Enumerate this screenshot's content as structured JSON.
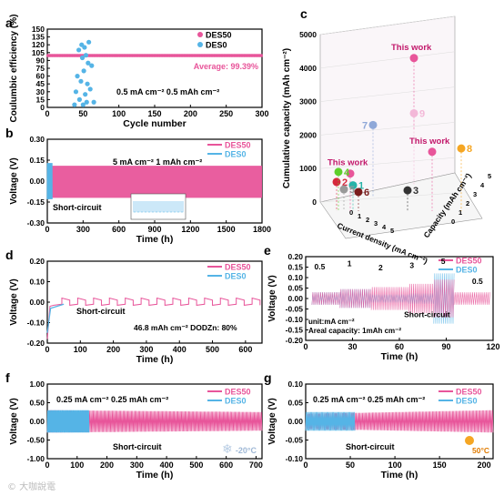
{
  "colors": {
    "pink": "#e8559a",
    "pink_light": "#f6a9cf",
    "blue": "#55b4e6",
    "blue_light": "#9ad3f2",
    "teal": "#27b3a8",
    "red": "#d6283d",
    "green": "#5ecf2b",
    "orange": "#f5a623"
  },
  "watermark": "© 大咖說電",
  "chart_data": [
    {
      "id": "a",
      "type": "scatter",
      "panel_label": "a",
      "xlabel": "Cycle number",
      "ylabel": "Coulumbic efficiency (%)",
      "xlim": [
        0,
        300
      ],
      "ylim": [
        0,
        150
      ],
      "xticks": [
        0,
        50,
        100,
        150,
        200,
        250,
        300
      ],
      "yticks": [
        0,
        15,
        30,
        45,
        60,
        75,
        90,
        105,
        120,
        135,
        150
      ],
      "legend": [
        "DES50",
        "DES0"
      ],
      "legend_position": "top-right",
      "annotations": [
        "Average: 99.39%",
        "0.5 mA cm⁻² 0.5 mAh cm⁻²"
      ],
      "series": [
        {
          "name": "DES50",
          "color": "#e8559a",
          "x_range": [
            1,
            300
          ],
          "value": 99.39
        },
        {
          "name": "DES0",
          "color": "#55b4e6",
          "points": [
            [
              38,
              5
            ],
            [
              40,
              30
            ],
            [
              42,
              60
            ],
            [
              44,
              110
            ],
            [
              45,
              15
            ],
            [
              47,
              50
            ],
            [
              48,
              120
            ],
            [
              49,
              95
            ],
            [
              50,
              5
            ],
            [
              51,
              70
            ],
            [
              52,
              115
            ],
            [
              53,
              25
            ],
            [
              54,
              100
            ],
            [
              55,
              10
            ],
            [
              56,
              45
            ],
            [
              57,
              85
            ],
            [
              58,
              125
            ],
            [
              60,
              35
            ],
            [
              62,
              80
            ],
            [
              65,
              10
            ]
          ]
        }
      ]
    },
    {
      "id": "b",
      "type": "line",
      "panel_label": "b",
      "xlabel": "Time (h)",
      "ylabel": "Voltage (V)",
      "xlim": [
        0,
        1800
      ],
      "ylim": [
        -0.3,
        0.3
      ],
      "xticks": [
        0,
        300,
        600,
        900,
        1200,
        1500,
        1800
      ],
      "yticks": [
        -0.3,
        -0.15,
        0.0,
        0.15,
        0.3
      ],
      "legend": [
        "DES50",
        "DES0"
      ],
      "legend_position": "top-right",
      "annotations": [
        "5 mA cm⁻² 1 mAh cm⁻²",
        "Short-circuit"
      ],
      "series": [
        {
          "name": "DES50",
          "color": "#e8559a",
          "amplitude_start": 0.11,
          "amplitude_end": 0.14,
          "x_range": [
            0,
            1800
          ]
        },
        {
          "name": "DES0",
          "color": "#55b4e6",
          "amplitude_start": 0.13,
          "x_range": [
            0,
            40
          ]
        }
      ]
    },
    {
      "id": "c",
      "type": "scatter",
      "panel_label": "c",
      "xlabel": "Current density (mA cm⁻²)",
      "ylabel": "Cumulative capacity (mAh cm⁻²)",
      "zlabel": "Capacity (mAh cm⁻²)",
      "ylim": [
        0,
        5000
      ],
      "yticks": [
        0,
        1000,
        2000,
        3000,
        4000,
        5000
      ],
      "x_ticks": [
        0,
        1,
        2,
        3,
        4,
        5
      ],
      "z_ticks": [
        0,
        1,
        2,
        3,
        4,
        5
      ],
      "annotations": [
        "This work",
        "This work",
        "This work"
      ],
      "points": [
        {
          "label": "This work",
          "cumulative": 4300,
          "color": "#e8559a"
        },
        {
          "label": "This work",
          "cumulative": 1500,
          "color": "#e8559a"
        },
        {
          "label": "This work",
          "cumulative": 850,
          "color": "#e8559a"
        },
        {
          "label": "1",
          "cumulative": 500,
          "color": "#27b3a8"
        },
        {
          "label": "2",
          "cumulative": 600,
          "color": "#d6283d"
        },
        {
          "label": "3",
          "cumulative": 350,
          "color": "#333333"
        },
        {
          "label": "4",
          "cumulative": 900,
          "color": "#5ecf2b"
        },
        {
          "label": "5",
          "cumulative": 380,
          "color": "#999999"
        },
        {
          "label": "6",
          "cumulative": 300,
          "color": "#7a1c1c"
        },
        {
          "label": "7",
          "cumulative": 2300,
          "color": "#8fa8d8"
        },
        {
          "label": "8",
          "cumulative": 1600,
          "color": "#f5a623"
        },
        {
          "label": "9",
          "cumulative": 2650,
          "color": "#f3b8d8"
        }
      ]
    },
    {
      "id": "d",
      "type": "line",
      "panel_label": "d",
      "xlabel": "Time (h)",
      "ylabel": "Voltage (V)",
      "xlim": [
        0,
        650
      ],
      "ylim": [
        -0.2,
        0.2
      ],
      "xticks": [
        0,
        100,
        200,
        300,
        400,
        500,
        600
      ],
      "yticks": [
        -0.2,
        -0.1,
        0.0,
        0.1,
        0.2
      ],
      "legend": [
        "DES50",
        "DES0"
      ],
      "legend_position": "top-right",
      "annotations": [
        "Short-circuit",
        "46.8 mAh cm⁻²  DODZn: 80%"
      ],
      "series": [
        {
          "name": "DES50",
          "color": "#e8559a",
          "period": 48,
          "low": -0.015,
          "high": 0.02,
          "x_range": [
            0,
            640
          ]
        },
        {
          "name": "DES0",
          "color": "#55b4e6",
          "x_range": [
            0,
            50
          ],
          "value": -0.01
        }
      ]
    },
    {
      "id": "e",
      "type": "line",
      "panel_label": "e",
      "xlabel": "Time (h)",
      "ylabel": "Voltage (V)",
      "xlim": [
        0,
        120
      ],
      "ylim": [
        -0.2,
        0.2
      ],
      "xticks": [
        0,
        30,
        60,
        90,
        120
      ],
      "yticks": [
        -0.2,
        -0.15,
        -0.1,
        -0.05,
        0.0,
        0.05,
        0.1,
        0.15,
        0.2
      ],
      "legend": [
        "DES50",
        "DES0"
      ],
      "legend_position": "top-right",
      "annotations": [
        "unit:mA cm⁻²",
        "Areal capacity: 1mAh cm⁻²",
        "Short-circuit"
      ],
      "rate_labels": [
        "0.5",
        "1",
        "2",
        "3",
        "5",
        "0.5"
      ],
      "series": [
        {
          "name": "DES50",
          "color": "#e8559a",
          "segments": [
            [
              4,
              22,
              0.03
            ],
            [
              22,
              42,
              0.045
            ],
            [
              42,
              66,
              0.055
            ],
            [
              66,
              82,
              0.07
            ],
            [
              82,
              95,
              0.09
            ],
            [
              95,
              118,
              0.03
            ]
          ]
        },
        {
          "name": "DES0",
          "color": "#55b4e6",
          "segments": [
            [
              4,
              22,
              0.03
            ],
            [
              22,
              42,
              0.045
            ],
            [
              42,
              66,
              0.02
            ],
            [
              66,
              82,
              0.025
            ],
            [
              82,
              95,
              0.12
            ]
          ]
        }
      ]
    },
    {
      "id": "f",
      "type": "line",
      "panel_label": "f",
      "xlabel": "Time (h)",
      "ylabel": "Voltage (V)",
      "xlim": [
        0,
        720
      ],
      "ylim": [
        -1.0,
        1.0
      ],
      "xticks": [
        0,
        100,
        200,
        300,
        400,
        500,
        600,
        700
      ],
      "yticks": [
        -1.0,
        -0.5,
        0.0,
        0.5,
        1.0
      ],
      "legend": [
        "DES50",
        "DES0"
      ],
      "legend_position": "top-right",
      "annotations": [
        "0.25 mA cm⁻² 0.25 mAh cm⁻²",
        "Short-circuit",
        "-20°C"
      ],
      "series": [
        {
          "name": "DES50",
          "color": "#e8559a",
          "amplitude_start": 0.3,
          "amplitude_end": 0.25,
          "x_range": [
            0,
            720
          ]
        },
        {
          "name": "DES0",
          "color": "#55b4e6",
          "amplitude_start": 0.3,
          "x_range": [
            0,
            140
          ]
        }
      ]
    },
    {
      "id": "g",
      "type": "line",
      "panel_label": "g",
      "xlabel": "Time (h)",
      "ylabel": "Voltage (V)",
      "xlim": [
        0,
        210
      ],
      "ylim": [
        -0.1,
        0.1
      ],
      "xticks": [
        0,
        50,
        100,
        150,
        200
      ],
      "yticks": [
        -0.1,
        -0.05,
        0.0,
        0.05,
        0.1
      ],
      "legend": [
        "DES50",
        "DES0"
      ],
      "legend_position": "top-right",
      "annotations": [
        "0.25 mA cm⁻² 0.25 mAh cm⁻²",
        "Short-circuit",
        "50°C"
      ],
      "series": [
        {
          "name": "DES50",
          "color": "#e8559a",
          "amplitude_start": 0.02,
          "amplitude_end": 0.03,
          "x_range": [
            0,
            210
          ]
        },
        {
          "name": "DES0",
          "color": "#55b4e6",
          "amplitude_start": 0.025,
          "x_range": [
            0,
            55
          ]
        }
      ]
    }
  ]
}
